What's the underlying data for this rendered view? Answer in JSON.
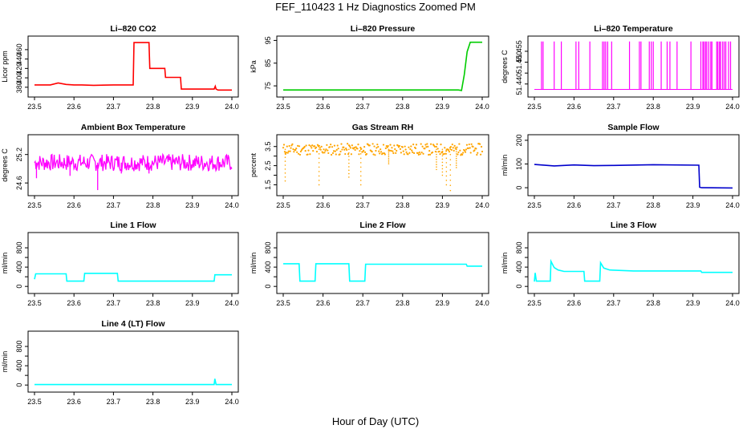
{
  "figure": {
    "title": "FEF_110423  1 Hz Diagnostics Zoomed PM",
    "xlabel": "Hour of Day (UTC)"
  },
  "chart_data": [
    {
      "type": "line",
      "title": "Li–820 CO2",
      "ylabel": "Licor ppm",
      "color": "#ff0000",
      "xlim": [
        23.5,
        24.0
      ],
      "ylim": [
        366,
        482
      ],
      "xticks": [
        "23.5",
        "23.6",
        "23.7",
        "23.8",
        "23.9",
        "24.0"
      ],
      "yticks": [
        380,
        400,
        420,
        440,
        460
      ],
      "series": [
        {
          "x": [
            23.5,
            23.54,
            23.56,
            23.58,
            23.6,
            23.62,
            23.65,
            23.7,
            23.75,
            23.752,
            23.79,
            23.792,
            23.83,
            23.832,
            23.87,
            23.872,
            23.955,
            23.958,
            23.96,
            23.965,
            24.0
          ],
          "y": [
            385,
            385,
            389,
            386,
            385,
            385,
            384,
            385,
            385,
            475,
            475,
            420,
            420,
            401,
            401,
            376,
            376,
            382,
            376,
            374,
            374
          ]
        }
      ]
    },
    {
      "type": "line",
      "title": "Li–820 Pressure",
      "ylabel": "kPa",
      "color": "#00cc00",
      "xlim": [
        23.5,
        24.0
      ],
      "ylim": [
        71.5,
        95.5
      ],
      "xticks": [
        "23.5",
        "23.6",
        "23.7",
        "23.8",
        "23.9",
        "24.0"
      ],
      "yticks": [
        75,
        85,
        95
      ],
      "series": [
        {
          "x": [
            23.5,
            23.7,
            23.9,
            23.94,
            23.948,
            23.955,
            23.962,
            23.97,
            24.0
          ],
          "y": [
            73.2,
            73.2,
            73.2,
            73.2,
            73.0,
            80,
            90,
            94.2,
            94.2
          ]
        }
      ]
    },
    {
      "type": "line",
      "title": "Li–820 Temperature",
      "ylabel": "degrees C",
      "color": "#ff00ff",
      "xlim": [
        23.5,
        24.0
      ],
      "ylim": [
        51.4355,
        51.4605
      ],
      "xticks": [
        "23.5",
        "23.6",
        "23.7",
        "23.8",
        "23.9",
        "24.0"
      ],
      "yticks": [
        51.44,
        51.445,
        51.45,
        51.455
      ],
      "ytick_labels": [
        "51.440",
        "",
        "51.450",
        "51.455"
      ],
      "series": [
        {
          "baseline": 51.4375,
          "high": 51.4595,
          "spikes": [
            23.518,
            23.522,
            23.55,
            23.568,
            23.605,
            23.612,
            23.64,
            23.672,
            23.676,
            23.68,
            23.685,
            23.695,
            23.74,
            23.765,
            23.769,
            23.79,
            23.795,
            23.8,
            23.82,
            23.835,
            23.842,
            23.86,
            23.895,
            23.92,
            23.925,
            23.928,
            23.932,
            23.935,
            23.94,
            23.945,
            23.948,
            23.96,
            23.963,
            23.967,
            23.97,
            23.975,
            23.979,
            23.983,
            23.99,
            23.995
          ]
        }
      ]
    },
    {
      "type": "line",
      "title": "Ambient Box Temperature",
      "ylabel": "degrees C",
      "color": "#ff00ff",
      "xlim": [
        23.5,
        24.0
      ],
      "ylim": [
        24.4,
        25.55
      ],
      "xticks": [
        "23.5",
        "23.6",
        "23.7",
        "23.8",
        "23.9",
        "24.0"
      ],
      "yticks": [
        24.6,
        25.2
      ],
      "series": [
        {
          "noise": {
            "center": 25.03,
            "amplitude": 0.18,
            "seed": 7
          },
          "dips": [
            {
              "x": 23.66,
              "y": 24.45
            },
            {
              "x": 23.505,
              "y": 24.7
            },
            {
              "x": 23.59,
              "y": 24.75
            },
            {
              "x": 23.79,
              "y": 24.8
            },
            {
              "x": 23.72,
              "y": 24.8
            }
          ]
        }
      ]
    },
    {
      "type": "scatter",
      "title": "Gas Stream RH",
      "ylabel": "percent",
      "color": "#ffa500",
      "xlim": [
        23.5,
        24.0
      ],
      "ylim": [
        1.1,
        3.95
      ],
      "xticks": [
        "23.5",
        "23.6",
        "23.7",
        "23.8",
        "23.9",
        "24.0"
      ],
      "yticks": [
        1.5,
        2.5,
        3.5
      ],
      "yticks_minor": [
        2.0,
        3.0
      ],
      "ytick_labels": [
        "1.5",
        "2.5",
        "3.5"
      ],
      "series": [
        {
          "noise": {
            "center": 3.35,
            "amplitude": 0.3,
            "seed": 11
          },
          "dips": [
            {
              "x": 23.505,
              "y": 1.7
            },
            {
              "x": 23.59,
              "y": 1.5
            },
            {
              "x": 23.665,
              "y": 1.9
            },
            {
              "x": 23.695,
              "y": 1.5
            },
            {
              "x": 23.765,
              "y": 2.6
            },
            {
              "x": 23.885,
              "y": 2.3
            },
            {
              "x": 23.9,
              "y": 2.0
            },
            {
              "x": 23.91,
              "y": 1.5
            },
            {
              "x": 23.92,
              "y": 1.2
            },
            {
              "x": 23.935,
              "y": 2.4
            }
          ]
        }
      ]
    },
    {
      "type": "line",
      "title": "Sample Flow",
      "ylabel": "ml/min",
      "color": "#0000cc",
      "xlim": [
        23.5,
        24.0
      ],
      "ylim": [
        -20,
        210
      ],
      "xticks": [
        "23.5",
        "23.6",
        "23.7",
        "23.8",
        "23.9",
        "24.0"
      ],
      "yticks": [
        0,
        100,
        200
      ],
      "series": [
        {
          "x": [
            23.5,
            23.55,
            23.6,
            23.65,
            23.7,
            23.8,
            23.915,
            23.917,
            23.922,
            24.0
          ],
          "y": [
            98,
            92,
            96,
            93,
            94,
            97,
            95,
            2,
            0,
            -1
          ]
        }
      ]
    },
    {
      "type": "line",
      "title": "Line 1 Flow",
      "ylabel": "ml/min",
      "color": "#00ffff",
      "xlim": [
        23.5,
        24.0
      ],
      "ylim": [
        -80,
        1050
      ],
      "xticks": [
        "23.5",
        "23.6",
        "23.7",
        "23.8",
        "23.9",
        "24.0"
      ],
      "yticks": [
        0,
        200,
        400,
        600,
        800
      ],
      "ytick_labels": [
        "0",
        "400",
        "800"
      ],
      "series": [
        {
          "x": [
            23.5,
            23.503,
            23.58,
            23.582,
            23.625,
            23.627,
            23.71,
            23.712,
            23.955,
            23.957,
            24.0
          ],
          "y": [
            150,
            260,
            260,
            110,
            110,
            270,
            270,
            110,
            110,
            240,
            240
          ]
        }
      ]
    },
    {
      "type": "line",
      "title": "Line 2 Flow",
      "ylabel": "ml/min",
      "color": "#00ffff",
      "xlim": [
        23.5,
        24.0
      ],
      "ylim": [
        -80,
        1050
      ],
      "xticks": [
        "23.5",
        "23.6",
        "23.7",
        "23.8",
        "23.9",
        "24.0"
      ],
      "yticks": [
        0,
        200,
        400,
        600,
        800
      ],
      "ytick_labels": [
        "0",
        "400",
        "800"
      ],
      "series": [
        {
          "x": [
            23.5,
            23.54,
            23.542,
            23.58,
            23.582,
            23.665,
            23.667,
            23.705,
            23.707,
            23.96,
            23.962,
            24.0
          ],
          "y": [
            470,
            470,
            110,
            110,
            470,
            470,
            110,
            110,
            460,
            460,
            420,
            420
          ]
        }
      ]
    },
    {
      "type": "line",
      "title": "Line 3 Flow",
      "ylabel": "ml/min",
      "color": "#00ffff",
      "xlim": [
        23.5,
        24.0
      ],
      "ylim": [
        -80,
        1050
      ],
      "xticks": [
        "23.5",
        "23.6",
        "23.7",
        "23.8",
        "23.9",
        "24.0"
      ],
      "yticks": [
        0,
        200,
        400,
        600,
        800
      ],
      "ytick_labels": [
        "0",
        "400",
        "800"
      ],
      "series": [
        {
          "x": [
            23.5,
            23.502,
            23.505,
            23.54,
            23.542,
            23.55,
            23.56,
            23.575,
            23.625,
            23.627,
            23.665,
            23.667,
            23.675,
            23.69,
            23.75,
            23.92,
            23.922,
            24.0
          ],
          "y": [
            100,
            280,
            110,
            110,
            520,
            390,
            340,
            310,
            310,
            110,
            110,
            490,
            380,
            340,
            320,
            320,
            290,
            290
          ]
        }
      ]
    },
    {
      "type": "line",
      "title": "Line 4 (LT) Flow",
      "ylabel": "ml/min",
      "color": "#00ffff",
      "xlim": [
        23.5,
        24.0
      ],
      "ylim": [
        -80,
        1050
      ],
      "xticks": [
        "23.5",
        "23.6",
        "23.7",
        "23.8",
        "23.9",
        "24.0"
      ],
      "yticks": [
        0,
        200,
        400,
        600,
        800
      ],
      "ytick_labels": [
        "0",
        "400",
        "800"
      ],
      "series": [
        {
          "x": [
            23.5,
            23.955,
            23.957,
            23.96,
            23.962,
            24.0
          ],
          "y": [
            10,
            10,
            130,
            10,
            10,
            10
          ]
        }
      ]
    }
  ]
}
